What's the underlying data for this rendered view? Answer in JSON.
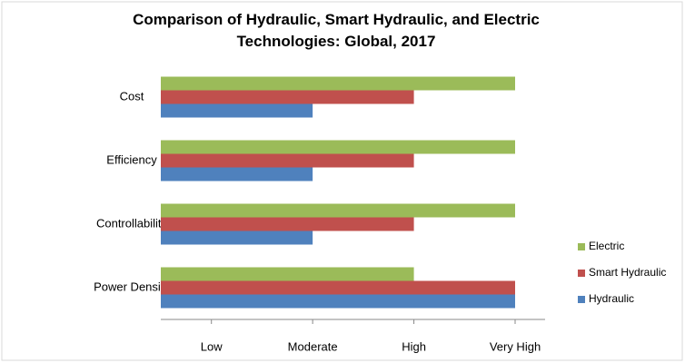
{
  "chart_data": {
    "type": "hbar",
    "title": "Comparison of Hydraulic, Smart Hydraulic, and Electric Technologies: Global, 2017",
    "categories": [
      "Cost",
      "Efficiency",
      "Controllability",
      "Power Density"
    ],
    "series": [
      {
        "name": "Hydraulic",
        "color": "#4f81bd",
        "values": [
          2,
          2,
          2,
          4
        ]
      },
      {
        "name": "Smart Hydraulic",
        "color": "#c0504d",
        "values": [
          3,
          3,
          3,
          4
        ]
      },
      {
        "name": "Electric",
        "color": "#9bbb59",
        "values": [
          4,
          4,
          4,
          3
        ]
      }
    ],
    "xlim": [
      0.5,
      4
    ],
    "xticks": [
      {
        "value": 1,
        "label": "Low"
      },
      {
        "value": 2,
        "label": "Moderate"
      },
      {
        "value": 3,
        "label": "High"
      },
      {
        "value": 4,
        "label": "Very High"
      }
    ],
    "legend": "right"
  }
}
